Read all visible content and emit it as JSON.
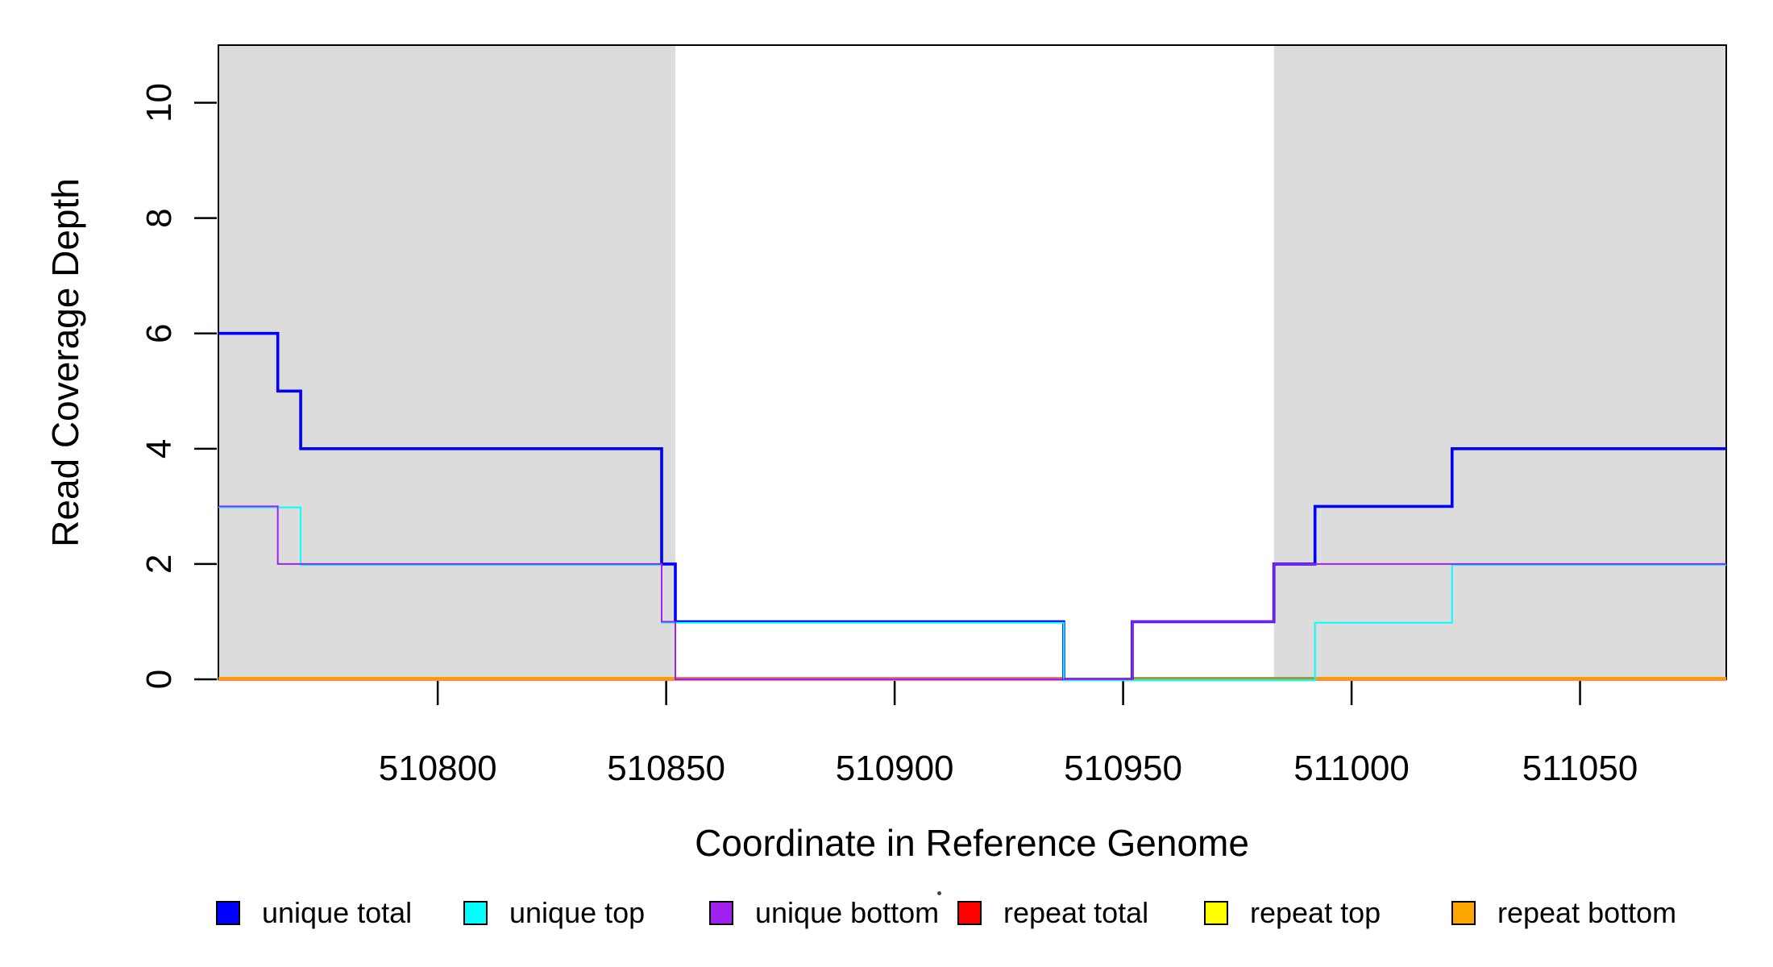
{
  "figure": {
    "background": "#FFFFFF",
    "legend": {
      "items": [
        {
          "id": "unique-total",
          "label": "unique total",
          "color": "#0000FF"
        },
        {
          "id": "unique-top",
          "label": "unique top",
          "color": "#00FFFF"
        },
        {
          "id": "unique-bottom",
          "label": "unique bottom",
          "color": "#A020F0"
        },
        {
          "id": "repeat-total",
          "label": "repeat total",
          "color": "#FF0000"
        },
        {
          "id": "repeat-top",
          "label": "repeat top",
          "color": "#FFFF00"
        },
        {
          "id": "repeat-bottom",
          "label": "repeat bottom",
          "color": "#FFA500"
        }
      ]
    },
    "artifact_dot_color": "#454545"
  },
  "chart_data": {
    "type": "line",
    "subtype": "step",
    "title": "",
    "xlabel": "Coordinate in Reference Genome",
    "ylabel": "Read Coverage Depth",
    "xlim": [
      510752,
      511082
    ],
    "ylim": [
      0,
      11
    ],
    "x_ticks": [
      510800,
      510850,
      510900,
      510950,
      511000,
      511050
    ],
    "y_ticks": [
      0,
      2,
      4,
      6,
      8,
      10
    ],
    "grid": false,
    "legend_position": "bottom",
    "shade_color": "#DCDCDC",
    "shaded_regions": [
      {
        "from": 510752,
        "to": 510852
      },
      {
        "from": 510983,
        "to": 511082
      }
    ],
    "series": [
      {
        "id": "repeat-total",
        "name": "repeat total",
        "color": "#FF0000",
        "points": [
          [
            510752,
            0
          ]
        ]
      },
      {
        "id": "repeat-top",
        "name": "repeat top",
        "color": "#FFFF00",
        "points": [
          [
            510752,
            0
          ]
        ]
      },
      {
        "id": "repeat-bottom",
        "name": "repeat bottom",
        "color": "#FFA500",
        "points": [
          [
            510752,
            0
          ]
        ]
      },
      {
        "id": "unique-total",
        "name": "unique total",
        "color": "#0000FF",
        "points": [
          [
            510752,
            6
          ],
          [
            510765,
            5
          ],
          [
            510770,
            4
          ],
          [
            510849,
            2
          ],
          [
            510852,
            1
          ],
          [
            510937,
            0
          ],
          [
            510952,
            1
          ],
          [
            510983,
            2
          ],
          [
            510992,
            3
          ],
          [
            511022,
            4
          ]
        ]
      },
      {
        "id": "unique-top",
        "name": "unique top",
        "color": "#00FFFF",
        "points": [
          [
            510752,
            3
          ],
          [
            510770,
            2
          ],
          [
            510849,
            1
          ],
          [
            510937,
            0
          ],
          [
            510992,
            1
          ],
          [
            511022,
            2
          ]
        ]
      },
      {
        "id": "unique-bottom",
        "name": "unique bottom",
        "color": "#A020F0",
        "points": [
          [
            510752,
            3
          ],
          [
            510765,
            2
          ],
          [
            510849,
            1
          ],
          [
            510852,
            0
          ],
          [
            510952,
            1
          ],
          [
            510983,
            2
          ]
        ]
      }
    ],
    "zero_line_overlay": [
      {
        "from": 510752,
        "to": 510852,
        "color": "#FF9800"
      },
      {
        "from": 510852,
        "to": 510937,
        "color": "#E06A6A"
      },
      {
        "from": 510952,
        "to": 510992,
        "color": "#8A9A4B"
      },
      {
        "from": 510992,
        "to": 511082,
        "color": "#FF9800"
      }
    ]
  }
}
